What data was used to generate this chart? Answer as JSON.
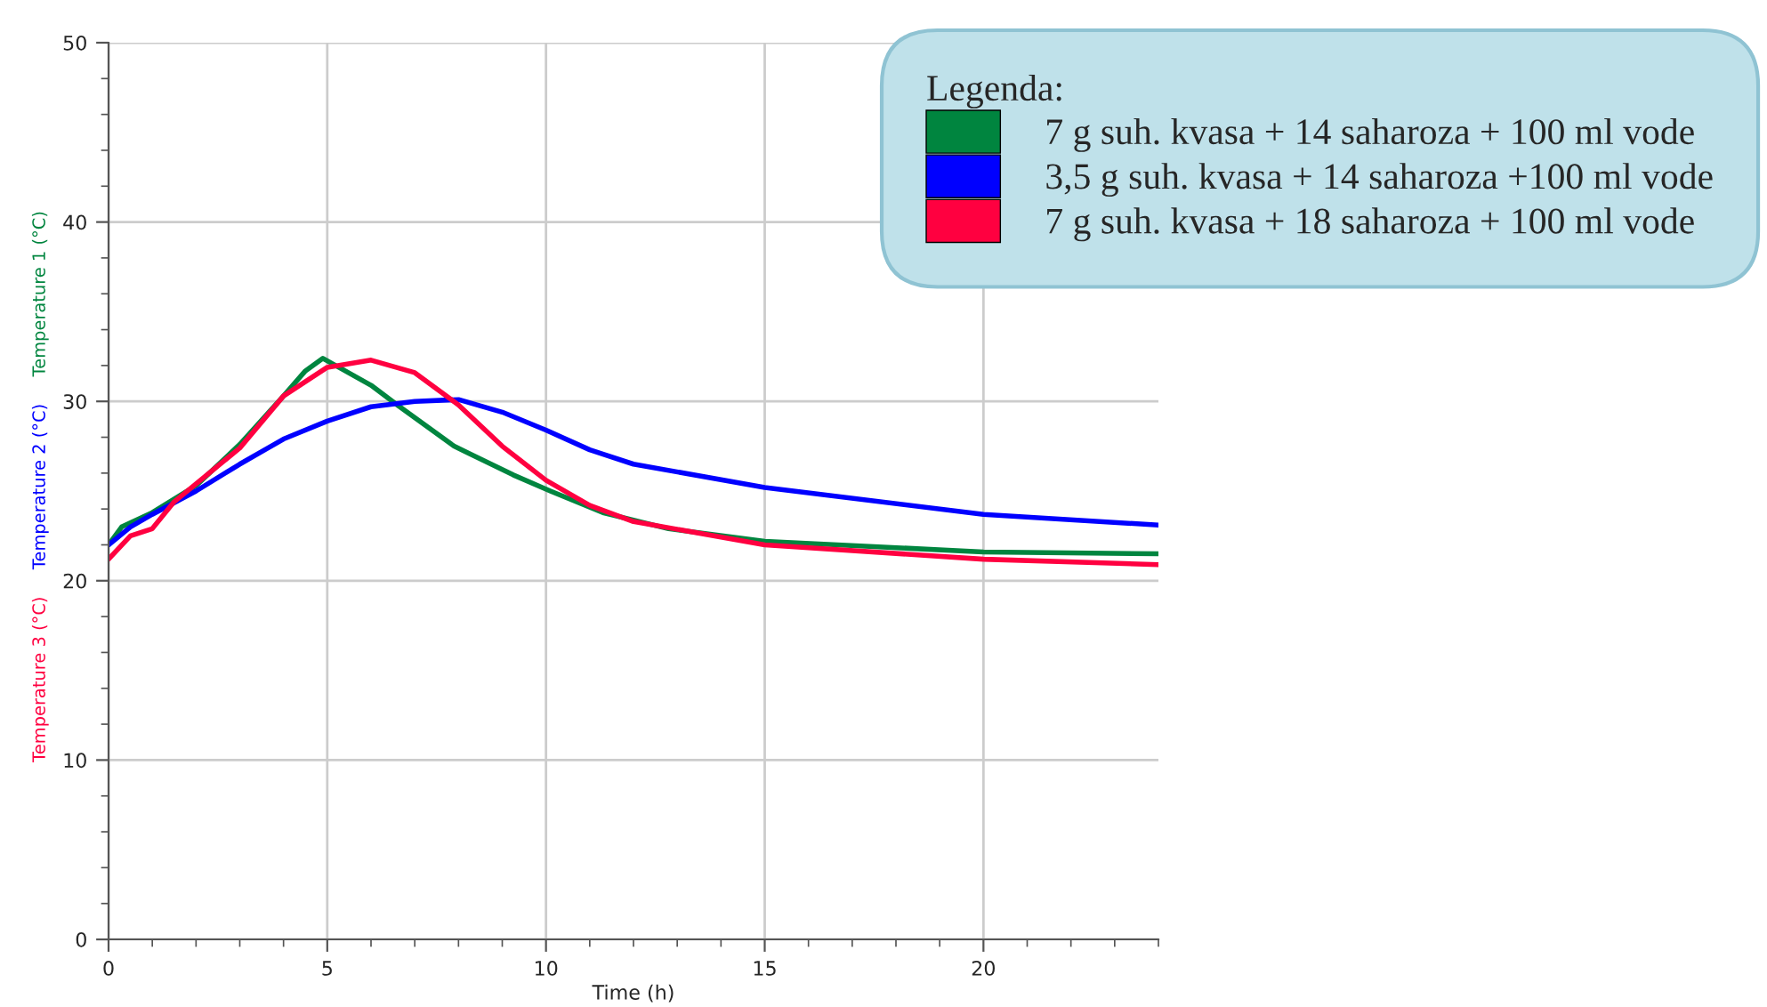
{
  "chart_data": {
    "type": "line",
    "xlabel": "Time (h)",
    "ylabel": [
      "Temperature 1 (°C)",
      "Temperature 2 (°C)",
      "Temperature 3 (°C)"
    ],
    "legend_title": "Legenda:",
    "xlim": [
      0,
      24
    ],
    "xticks": [
      0,
      5,
      10,
      15,
      20
    ],
    "ylim": [
      0,
      50
    ],
    "yticks": [
      0,
      10,
      20,
      30,
      40,
      50
    ],
    "grid": true,
    "legend": "top right",
    "marker": "none",
    "line_style": "solid",
    "series": [
      {
        "name": "7 g suh. kvasa + 14 saharoza + 100 ml vode",
        "color": "#00853f",
        "x": [
          0,
          0.3,
          1,
          2,
          3,
          4,
          4.5,
          4.9,
          6,
          6.6,
          7.9,
          9.25,
          10.1,
          11.3,
          12.8,
          15,
          20,
          24
        ],
        "values": [
          22.0,
          23.0,
          23.8,
          25.3,
          27.6,
          30.3,
          31.7,
          32.4,
          30.9,
          29.8,
          27.5,
          25.9,
          25.0,
          23.8,
          22.9,
          22.2,
          21.6,
          21.5
        ]
      },
      {
        "name": "3,5 g suh. kvasa + 14 saharoza +100 ml vode",
        "color": "#0000ff",
        "x": [
          0,
          0.5,
          1,
          2,
          3,
          4,
          5,
          6,
          7,
          8,
          9,
          10,
          11,
          12,
          15,
          20,
          24
        ],
        "values": [
          22.0,
          23.0,
          23.7,
          25.0,
          26.5,
          27.9,
          28.9,
          29.7,
          30.0,
          30.1,
          29.4,
          28.4,
          27.3,
          26.5,
          25.2,
          23.7,
          23.1
        ]
      },
      {
        "name": "7 g suh. kvasa + 18 saharoza + 100 ml vode",
        "color": "#ff0040",
        "x": [
          0,
          0.5,
          1,
          1.5,
          3,
          4,
          5,
          6,
          7,
          8,
          9,
          10,
          11,
          12,
          15,
          20,
          24
        ],
        "values": [
          21.2,
          22.5,
          22.9,
          24.4,
          27.4,
          30.3,
          31.9,
          32.3,
          31.6,
          29.8,
          27.5,
          25.6,
          24.2,
          23.3,
          22.0,
          21.2,
          20.9
        ]
      }
    ]
  }
}
